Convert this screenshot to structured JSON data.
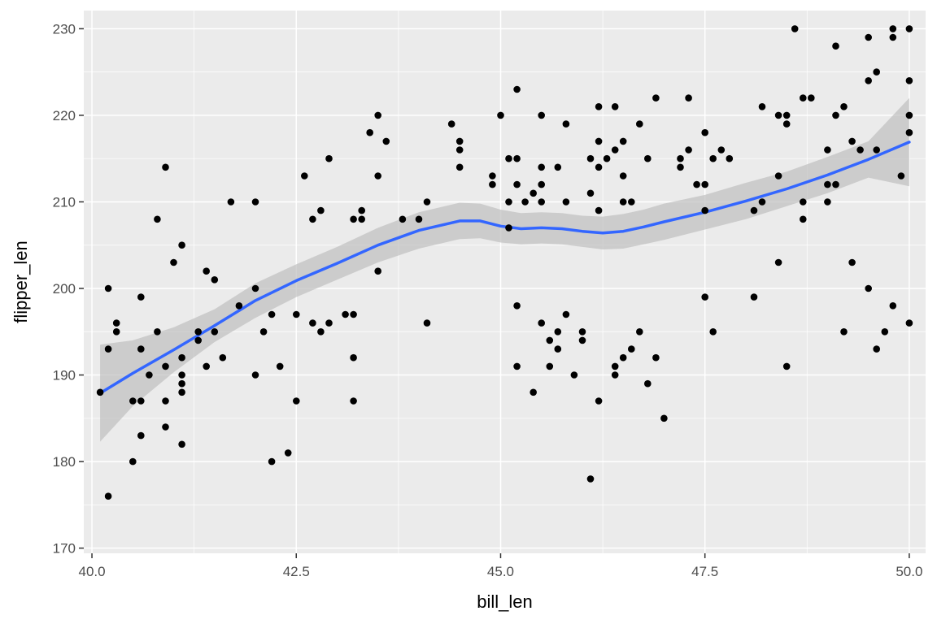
{
  "chart_data": {
    "type": "scatter",
    "xlabel": "bill_len",
    "ylabel": "flipper_len",
    "xlim": [
      39.9,
      50.2
    ],
    "ylim": [
      169.4,
      232.1
    ],
    "x_ticks": [
      40.0,
      42.5,
      45.0,
      47.5,
      50.0
    ],
    "x_tick_labels": [
      "40.0",
      "42.5",
      "45.0",
      "47.5",
      "50.0"
    ],
    "y_ticks": [
      170,
      180,
      190,
      200,
      210,
      220,
      230
    ],
    "y_tick_labels": [
      "170",
      "180",
      "190",
      "200",
      "210",
      "220",
      "230"
    ],
    "grid": true,
    "colors": {
      "panel": "#ebebeb",
      "grid": "#ffffff",
      "points": "#000000",
      "smooth_line": "#3366ff",
      "ribbon": "#bfbfbf"
    },
    "points": [
      [
        40.1,
        188
      ],
      [
        40.2,
        200
      ],
      [
        40.2,
        193
      ],
      [
        40.2,
        176
      ],
      [
        40.3,
        196
      ],
      [
        40.3,
        195
      ],
      [
        40.5,
        187
      ],
      [
        40.5,
        180
      ],
      [
        40.6,
        199
      ],
      [
        40.6,
        193
      ],
      [
        40.6,
        187
      ],
      [
        40.6,
        183
      ],
      [
        40.7,
        190
      ],
      [
        40.8,
        208
      ],
      [
        40.8,
        195
      ],
      [
        40.9,
        214
      ],
      [
        40.9,
        191
      ],
      [
        40.9,
        187
      ],
      [
        40.9,
        184
      ],
      [
        41.0,
        203
      ],
      [
        41.1,
        205
      ],
      [
        41.1,
        192
      ],
      [
        41.1,
        190
      ],
      [
        41.1,
        189
      ],
      [
        41.1,
        188
      ],
      [
        41.1,
        182
      ],
      [
        41.3,
        195
      ],
      [
        41.3,
        194
      ],
      [
        41.4,
        202
      ],
      [
        41.4,
        191
      ],
      [
        41.5,
        201
      ],
      [
        41.5,
        195
      ],
      [
        41.6,
        192
      ],
      [
        41.7,
        210
      ],
      [
        41.8,
        198
      ],
      [
        42.0,
        210
      ],
      [
        42.0,
        200
      ],
      [
        42.0,
        190
      ],
      [
        42.1,
        195
      ],
      [
        42.2,
        197
      ],
      [
        42.2,
        180
      ],
      [
        42.3,
        191
      ],
      [
        42.4,
        181
      ],
      [
        42.5,
        197
      ],
      [
        42.5,
        187
      ],
      [
        42.6,
        213
      ],
      [
        42.7,
        208
      ],
      [
        42.7,
        196
      ],
      [
        42.8,
        209
      ],
      [
        42.8,
        195
      ],
      [
        42.9,
        215
      ],
      [
        42.9,
        196
      ],
      [
        43.1,
        197
      ],
      [
        43.2,
        208
      ],
      [
        43.2,
        197
      ],
      [
        43.2,
        192
      ],
      [
        43.2,
        187
      ],
      [
        43.3,
        209
      ],
      [
        43.3,
        208
      ],
      [
        43.4,
        218
      ],
      [
        43.5,
        220
      ],
      [
        43.5,
        213
      ],
      [
        43.5,
        202
      ],
      [
        43.6,
        217
      ],
      [
        43.8,
        208
      ],
      [
        44.0,
        208
      ],
      [
        44.1,
        210
      ],
      [
        44.1,
        196
      ],
      [
        44.4,
        219
      ],
      [
        44.5,
        217
      ],
      [
        44.5,
        216
      ],
      [
        44.5,
        214
      ],
      [
        44.9,
        213
      ],
      [
        44.9,
        212
      ],
      [
        45.0,
        220
      ],
      [
        45.1,
        215
      ],
      [
        45.1,
        210
      ],
      [
        45.1,
        207
      ],
      [
        45.2,
        223
      ],
      [
        45.2,
        215
      ],
      [
        45.2,
        212
      ],
      [
        45.2,
        198
      ],
      [
        45.2,
        191
      ],
      [
        45.3,
        210
      ],
      [
        45.4,
        211
      ],
      [
        45.4,
        188
      ],
      [
        45.5,
        212
      ],
      [
        45.5,
        210
      ],
      [
        45.5,
        196
      ],
      [
        45.5,
        214
      ],
      [
        45.5,
        220
      ],
      [
        45.6,
        194
      ],
      [
        45.6,
        191
      ],
      [
        45.7,
        214
      ],
      [
        45.7,
        195
      ],
      [
        45.7,
        193
      ],
      [
        45.8,
        219
      ],
      [
        45.8,
        210
      ],
      [
        45.8,
        197
      ],
      [
        45.9,
        190
      ],
      [
        46.0,
        195
      ],
      [
        46.0,
        194
      ],
      [
        46.1,
        215
      ],
      [
        46.1,
        211
      ],
      [
        46.1,
        178
      ],
      [
        46.2,
        221
      ],
      [
        46.2,
        217
      ],
      [
        46.2,
        214
      ],
      [
        46.2,
        209
      ],
      [
        46.2,
        187
      ],
      [
        46.3,
        215
      ],
      [
        46.4,
        221
      ],
      [
        46.4,
        216
      ],
      [
        46.4,
        191
      ],
      [
        46.4,
        190
      ],
      [
        46.5,
        217
      ],
      [
        46.5,
        213
      ],
      [
        46.5,
        210
      ],
      [
        46.5,
        192
      ],
      [
        46.6,
        210
      ],
      [
        46.6,
        193
      ],
      [
        46.7,
        219
      ],
      [
        46.7,
        195
      ],
      [
        46.8,
        215
      ],
      [
        46.8,
        189
      ],
      [
        46.9,
        222
      ],
      [
        46.9,
        192
      ],
      [
        47.0,
        185
      ],
      [
        47.2,
        215
      ],
      [
        47.2,
        214
      ],
      [
        47.3,
        222
      ],
      [
        47.3,
        216
      ],
      [
        47.4,
        212
      ],
      [
        47.5,
        218
      ],
      [
        47.5,
        212
      ],
      [
        47.5,
        209
      ],
      [
        47.5,
        199
      ],
      [
        47.6,
        215
      ],
      [
        47.6,
        195
      ],
      [
        47.7,
        216
      ],
      [
        47.8,
        215
      ],
      [
        48.1,
        209
      ],
      [
        48.1,
        199
      ],
      [
        48.2,
        221
      ],
      [
        48.2,
        210
      ],
      [
        48.4,
        220
      ],
      [
        48.4,
        213
      ],
      [
        48.4,
        203
      ],
      [
        48.5,
        220
      ],
      [
        48.5,
        219
      ],
      [
        48.5,
        191
      ],
      [
        48.6,
        230
      ],
      [
        48.7,
        222
      ],
      [
        48.7,
        210
      ],
      [
        48.7,
        208
      ],
      [
        48.8,
        222
      ],
      [
        49.0,
        216
      ],
      [
        49.0,
        212
      ],
      [
        49.0,
        210
      ],
      [
        49.1,
        228
      ],
      [
        49.1,
        220
      ],
      [
        49.1,
        212
      ],
      [
        49.2,
        221
      ],
      [
        49.2,
        195
      ],
      [
        49.3,
        217
      ],
      [
        49.3,
        203
      ],
      [
        49.4,
        216
      ],
      [
        49.5,
        229
      ],
      [
        49.5,
        224
      ],
      [
        49.5,
        200
      ],
      [
        49.6,
        225
      ],
      [
        49.6,
        216
      ],
      [
        49.6,
        193
      ],
      [
        49.7,
        195
      ],
      [
        49.8,
        230
      ],
      [
        49.8,
        229
      ],
      [
        49.8,
        198
      ],
      [
        49.9,
        213
      ],
      [
        50.0,
        230
      ],
      [
        50.0,
        224
      ],
      [
        50.0,
        220
      ],
      [
        50.0,
        218
      ],
      [
        50.0,
        196
      ]
    ],
    "smooth": {
      "method": "loess",
      "x": [
        40.1,
        40.5,
        41.0,
        41.5,
        42.0,
        42.5,
        43.0,
        43.5,
        44.0,
        44.5,
        44.75,
        45.0,
        45.25,
        45.5,
        45.75,
        46.0,
        46.25,
        46.5,
        46.75,
        47.0,
        47.5,
        48.0,
        48.5,
        49.0,
        49.5,
        50.0
      ],
      "y": [
        187.9,
        190.2,
        192.9,
        195.7,
        198.6,
        200.9,
        202.9,
        205.0,
        206.7,
        207.8,
        207.8,
        207.2,
        206.9,
        207.0,
        206.9,
        206.6,
        206.4,
        206.6,
        207.1,
        207.7,
        208.8,
        210.1,
        211.5,
        213.1,
        214.9,
        216.9
      ],
      "lower": [
        182.3,
        186.4,
        190.3,
        193.8,
        196.6,
        199.0,
        201.0,
        203.0,
        204.6,
        205.7,
        205.8,
        205.3,
        205.1,
        205.2,
        205.1,
        204.8,
        204.5,
        204.6,
        205.1,
        205.6,
        206.8,
        208.0,
        209.5,
        211.0,
        212.8,
        211.8
      ],
      "upper": [
        193.5,
        194.0,
        195.5,
        197.6,
        200.6,
        202.8,
        204.8,
        207.0,
        208.8,
        209.9,
        209.8,
        209.1,
        208.7,
        208.8,
        208.7,
        208.4,
        208.3,
        208.6,
        209.1,
        209.8,
        210.8,
        212.2,
        213.5,
        215.2,
        217.0,
        222.0
      ]
    }
  }
}
